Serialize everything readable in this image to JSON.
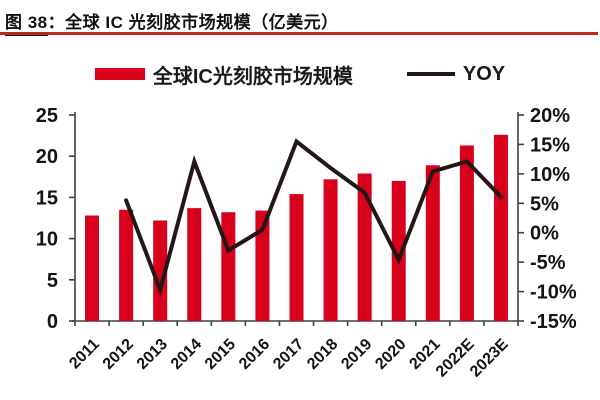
{
  "title": {
    "figure_label": "图 38",
    "separator": "：",
    "text": "全球 IC 光刻胶市场规模（亿美元）"
  },
  "legend": {
    "bar_label": "全球IC光刻胶市场规模",
    "line_label": "YOY"
  },
  "colors": {
    "bar": "#d9001b",
    "line": "#231815",
    "axis": "#404040",
    "tick_text": "#141414",
    "title_rule": "#c0281c"
  },
  "chart_data": {
    "type": "bar",
    "title": "全球 IC 光刻胶市场规模（亿美元）",
    "categories": [
      "2011",
      "2012",
      "2013",
      "2014",
      "2015",
      "2016",
      "2017",
      "2018",
      "2019",
      "2020",
      "2021",
      "2022E",
      "2023E"
    ],
    "series": [
      {
        "name": "全球IC光刻胶市场规模",
        "type": "bar",
        "axis": "left",
        "color": "#d9001b",
        "values": [
          12.8,
          13.5,
          12.2,
          13.7,
          13.2,
          13.4,
          15.4,
          17.2,
          17.9,
          17.0,
          18.9,
          21.3,
          22.6
        ]
      },
      {
        "name": "YOY",
        "type": "line",
        "axis": "right",
        "color": "#231815",
        "values": [
          null,
          5.5,
          -9.7,
          12.1,
          -3.0,
          0.5,
          15.5,
          11.0,
          6.8,
          -4.6,
          10.4,
          12.1,
          6.1
        ]
      }
    ],
    "left_axis": {
      "min": 0,
      "max": 25,
      "step": 5,
      "tick_labels": [
        "0",
        "5",
        "10",
        "15",
        "20",
        "25"
      ]
    },
    "right_axis": {
      "min": -15,
      "max": 20,
      "step": 5,
      "tick_labels": [
        "-15%",
        "-10%",
        "-5%",
        "0%",
        "5%",
        "10%",
        "15%",
        "20%"
      ]
    },
    "grid": false,
    "legend_position": "top",
    "xlabel": "",
    "ylabel_left": "亿美元",
    "ylabel_right": "YOY %"
  }
}
